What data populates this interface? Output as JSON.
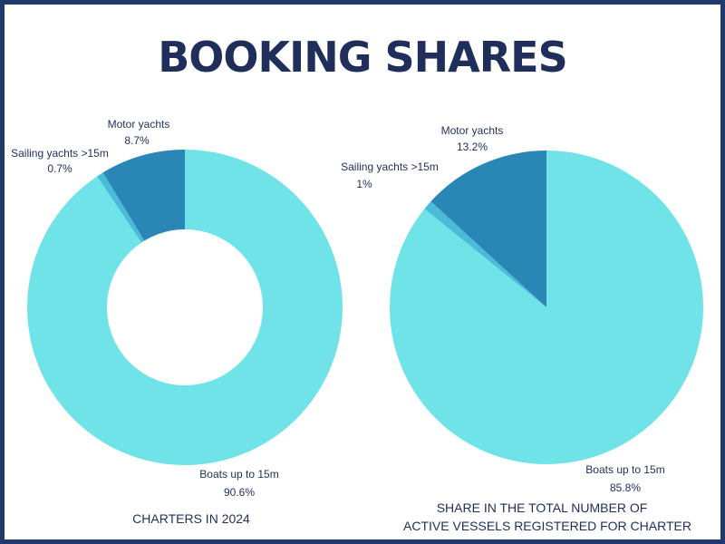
{
  "title": "BOOKING SHARES",
  "chart_data": [
    {
      "type": "pie",
      "style": "donut",
      "caption": "CHARTERS IN 2024",
      "slices": [
        {
          "name": "Boats up to 15m",
          "value": 90.6,
          "label": "90.6%",
          "color": "#6fe3e8"
        },
        {
          "name": "Sailing yachts >15m",
          "value": 0.7,
          "label": "0.7%",
          "color": "#49bcd9"
        },
        {
          "name": "Motor yachts",
          "value": 8.7,
          "label": "8.7%",
          "color": "#2a86b5"
        }
      ]
    },
    {
      "type": "pie",
      "style": "pie",
      "caption_lines": [
        "SHARE IN THE TOTAL NUMBER OF",
        "ACTIVE VESSELS REGISTERED FOR CHARTER"
      ],
      "slices": [
        {
          "name": "Boats up to 15m",
          "value": 85.8,
          "label": "85.8%",
          "color": "#6fe3e8"
        },
        {
          "name": "Sailing yachts >15m",
          "value": 1,
          "label": "1%",
          "color": "#49bcd9"
        },
        {
          "name": "Motor yachts",
          "value": 13.2,
          "label": "13.2%",
          "color": "#2a86b5"
        }
      ]
    }
  ]
}
